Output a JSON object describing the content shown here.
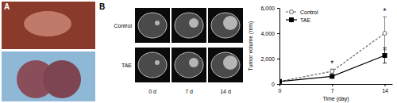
{
  "figure": {
    "panel_a_label": "A",
    "panel_b_label": "B",
    "row_labels": [
      "Control",
      "TAE"
    ],
    "column_labels": [
      "0 d",
      "7 d",
      "14 d"
    ]
  },
  "chart_data": {
    "type": "line",
    "x_label": "Time (day)",
    "y_label": "Tumor volume (mm)",
    "x": [
      0,
      7,
      14
    ],
    "xlim": [
      0,
      15
    ],
    "xticks": [
      0,
      7,
      14
    ],
    "ylim": [
      0,
      6000
    ],
    "yticks": [
      0,
      {
        "value": 2000,
        "label": "2,000"
      },
      {
        "value": 4000,
        "label": "4,000"
      },
      {
        "value": 6000,
        "label": "6,000"
      }
    ],
    "legend": "upper left",
    "series": [
      {
        "name": "Control",
        "color": "#666666",
        "marker": "circle-open",
        "line_style": "dashed",
        "values": [
          200,
          1000,
          4000
        ],
        "error": [
          40,
          180,
          1300
        ]
      },
      {
        "name": "TAE",
        "color": "#000000",
        "marker": "square",
        "line_style": "solid",
        "values": [
          200,
          600,
          2250
        ],
        "error": [
          40,
          100,
          600
        ]
      }
    ],
    "annotations": [
      {
        "text": "*",
        "x": 7,
        "y": 1400
      },
      {
        "text": "*",
        "x": 14,
        "y": 5500
      }
    ]
  }
}
